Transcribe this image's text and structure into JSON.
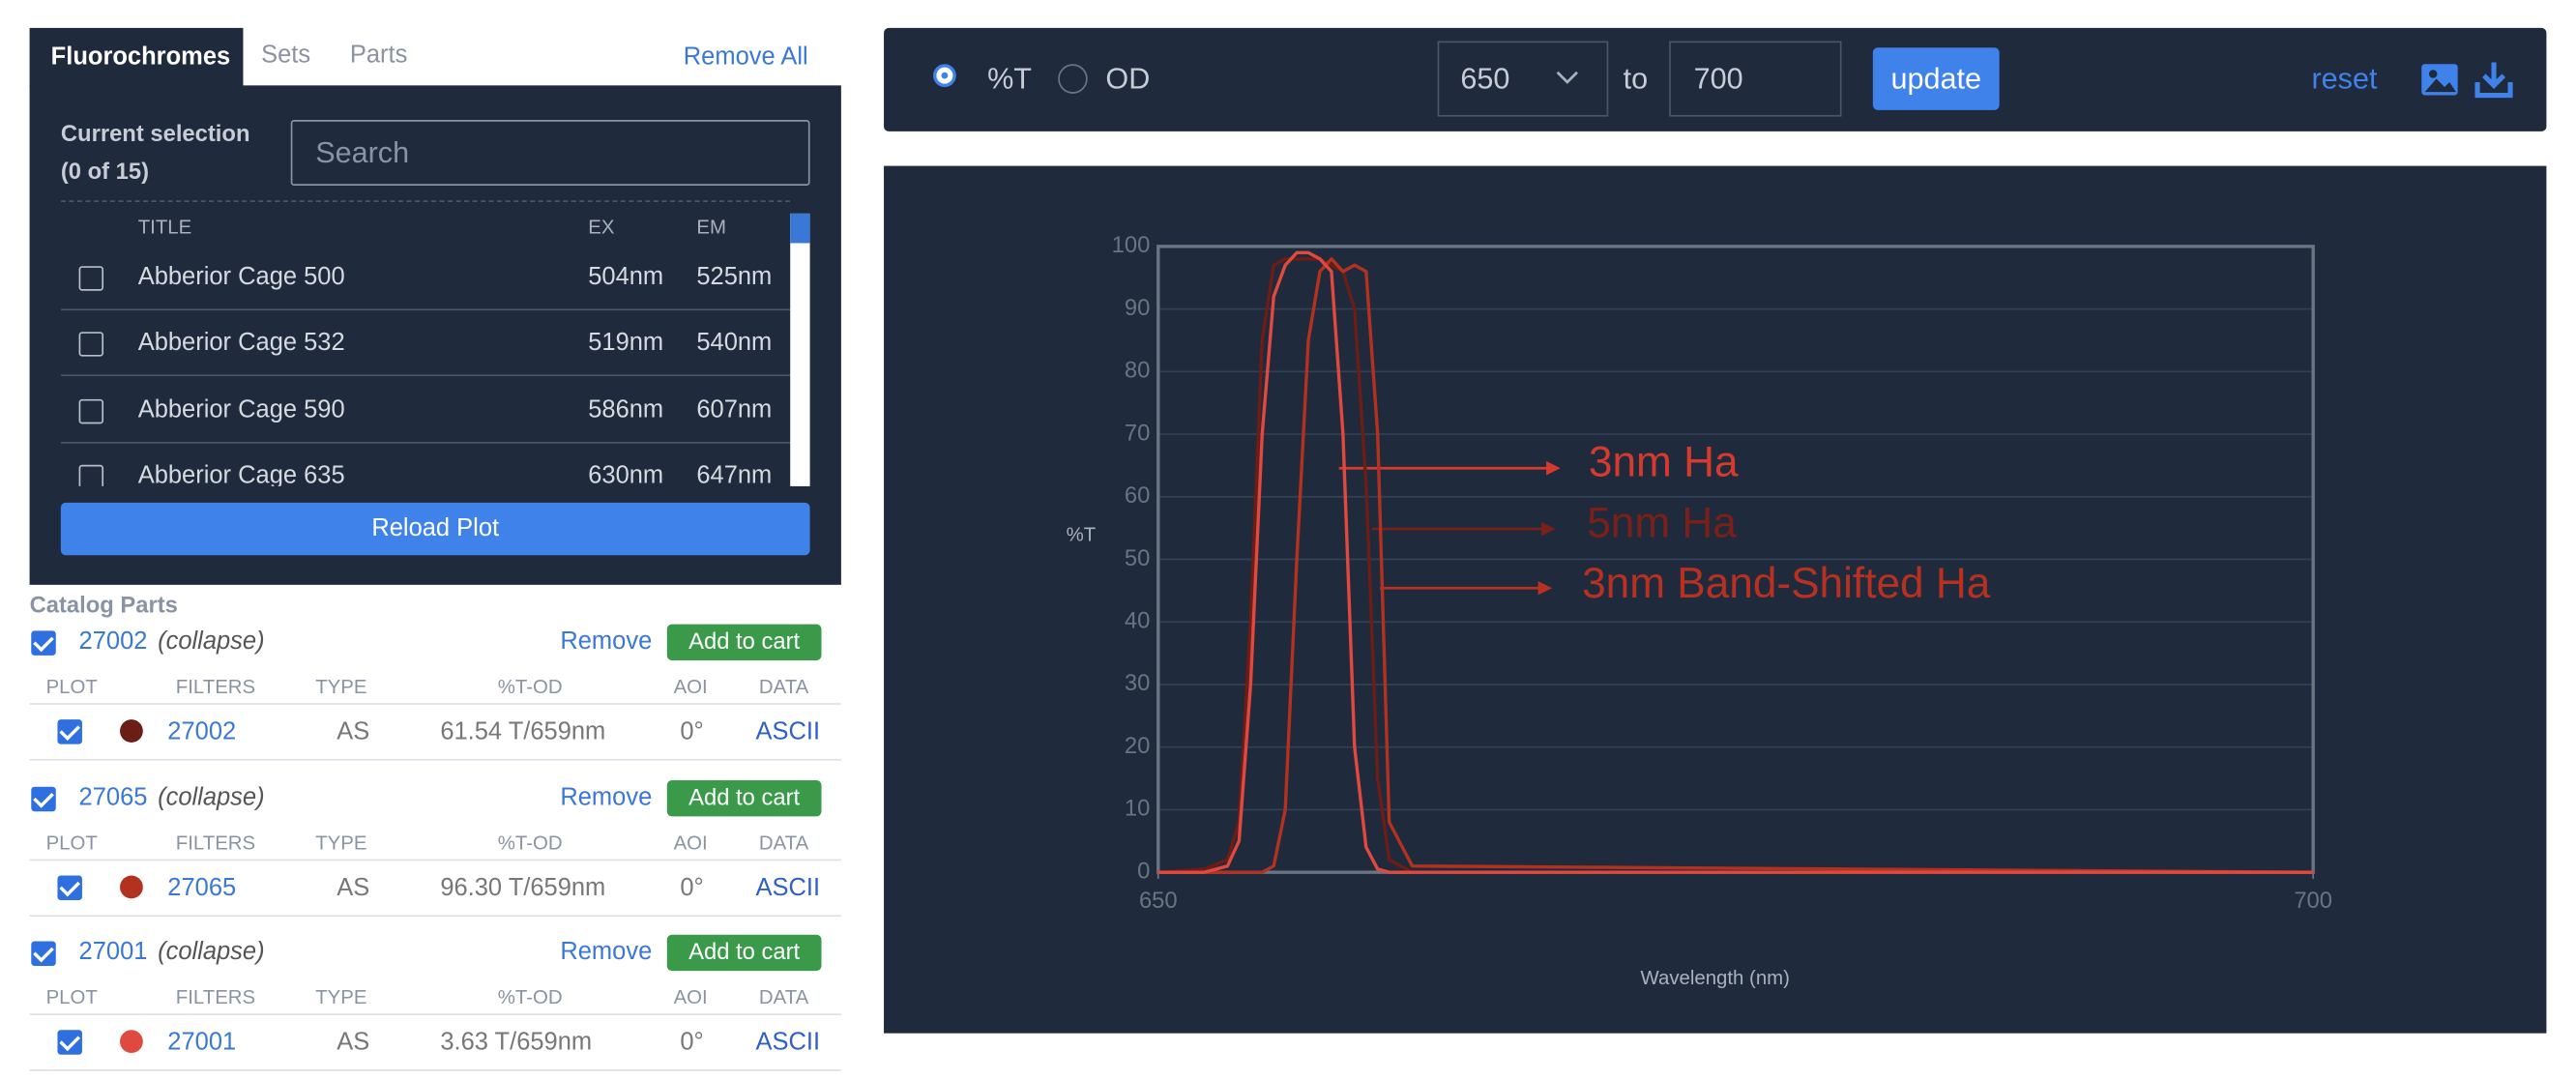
{
  "sidebar": {
    "tabs": [
      "Fluorochromes",
      "Sets",
      "Parts"
    ],
    "remove_all": "Remove All",
    "current_selection": "Current selection",
    "count": "(0 of 15)",
    "search_placeholder": "Search",
    "columns": [
      "TITLE",
      "EX",
      "EM"
    ],
    "rows": [
      [
        "Abberior Cage 500",
        "504nm",
        "525nm"
      ],
      [
        "Abberior Cage 532",
        "519nm",
        "540nm"
      ],
      [
        "Abberior Cage 590",
        "586nm",
        "607nm"
      ],
      [
        "Abberior Cage 635",
        "630nm",
        "647nm"
      ]
    ],
    "reload": "Reload Plot"
  },
  "catalog": {
    "title": "Catalog Parts",
    "columns": [
      "PLOT",
      "FILTERS",
      "TYPE",
      "%T-OD",
      "AOI",
      "DATA"
    ],
    "parts": [
      {
        "id": "27002",
        "collapse": "(collapse)",
        "remove": "Remove",
        "add": "Add to cart",
        "filter": "27002",
        "type": "AS",
        "tod": "61.54 T/659nm",
        "aoi": "0°",
        "data": "ASCII",
        "color": "#6b1d16"
      },
      {
        "id": "27065",
        "collapse": "(collapse)",
        "remove": "Remove",
        "add": "Add to cart",
        "filter": "27065",
        "type": "AS",
        "tod": "96.30 T/659nm",
        "aoi": "0°",
        "data": "ASCII",
        "color": "#b3321f"
      },
      {
        "id": "27001",
        "collapse": "(collapse)",
        "remove": "Remove",
        "add": "Add to cart",
        "filter": "27001",
        "type": "AS",
        "tod": "3.63 T/659nm",
        "aoi": "0°",
        "data": "ASCII",
        "color": "#e0493f"
      }
    ]
  },
  "toolbar": {
    "mode_t": "%T",
    "mode_od": "OD",
    "from": "650",
    "to_label": "to",
    "to": "700",
    "update": "update",
    "reset": "reset"
  },
  "plot": {
    "type": "line",
    "ylabel": "%T",
    "xlabel": "Wavelength (nm)",
    "xlim": [
      650,
      700
    ],
    "ylim": [
      0,
      100
    ],
    "xticks": [
      650,
      700
    ],
    "yticks": [
      0,
      10,
      20,
      30,
      40,
      50,
      60,
      70,
      80,
      90,
      100
    ],
    "grid": true,
    "x": [
      650,
      652,
      653,
      653.5,
      654,
      654.5,
      655,
      655.5,
      656,
      656.5,
      657,
      657.5,
      658,
      658.5,
      659,
      659.5,
      660,
      661,
      700
    ],
    "series": [
      {
        "color": "#6b1d16",
        "values": [
          0,
          0.5,
          2,
          8,
          40,
          85,
          97,
          98,
          98,
          98,
          98,
          97,
          96,
          90,
          62,
          15,
          2,
          0,
          0
        ]
      },
      {
        "color": "#b3321f",
        "values": [
          0,
          0,
          0,
          0,
          0,
          0,
          1,
          10,
          50,
          85,
          96,
          98,
          96,
          97,
          96,
          70,
          8,
          1,
          0
        ]
      },
      {
        "color": "#e0493f",
        "values": [
          0,
          0,
          1,
          5,
          30,
          70,
          92,
          97,
          99,
          99,
          98,
          96,
          70,
          20,
          4,
          0.5,
          0,
          0,
          0
        ]
      }
    ],
    "annotations": [
      {
        "text": "3nm Ha",
        "color": "#d63a2c"
      },
      {
        "text": "5nm Ha",
        "color": "#7a2018"
      },
      {
        "text": "3nm Band-Shifted Ha",
        "color": "#b83020"
      }
    ]
  }
}
